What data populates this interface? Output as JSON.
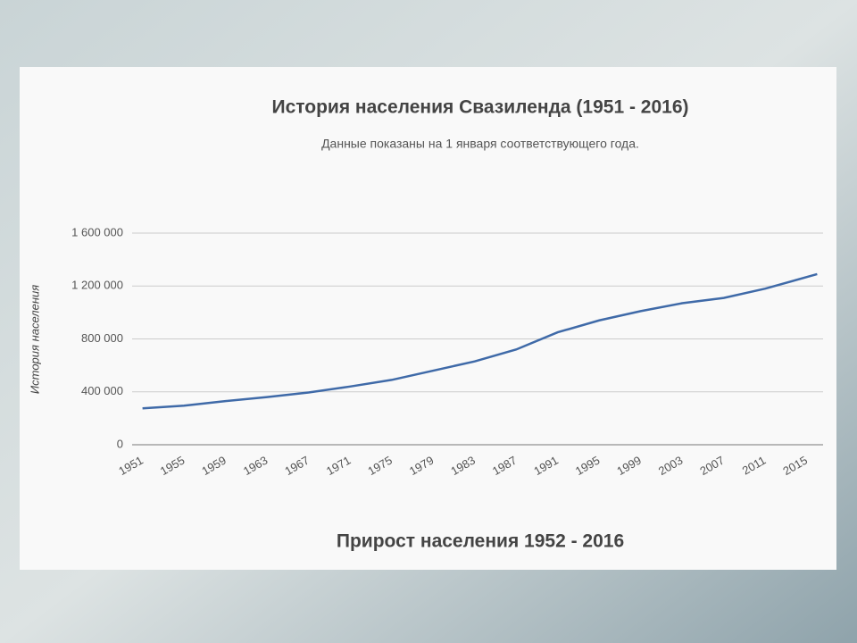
{
  "chart_data": {
    "type": "line",
    "title": "История населения Свазиленда (1951 - 2016)",
    "subtitle": "Данные показаны на 1 января соответствующего года.",
    "y_label": "История населения",
    "footer": "Прирост населения 1952 - 2016",
    "x": [
      1951,
      1955,
      1959,
      1963,
      1967,
      1971,
      1975,
      1979,
      1983,
      1987,
      1991,
      1995,
      1999,
      2003,
      2007,
      2011,
      2016
    ],
    "series": [
      {
        "color": "#3f6aa8",
        "values": [
          275000,
          295000,
          330000,
          360000,
          395000,
          440000,
          490000,
          560000,
          630000,
          720000,
          850000,
          940000,
          1010000,
          1070000,
          1110000,
          1180000,
          1290000
        ]
      }
    ],
    "xlim": [
      1950,
      2017
    ],
    "xticks": [
      1951,
      1955,
      1959,
      1963,
      1967,
      1971,
      1975,
      1979,
      1983,
      1987,
      1991,
      1995,
      1999,
      2003,
      2007,
      2011,
      2015
    ],
    "ylim": [
      0,
      1600000
    ],
    "yticks": [
      0,
      {
        "value": 400000,
        "label": "400 000"
      },
      {
        "value": 800000,
        "label": "800 000"
      },
      {
        "value": 1200000,
        "label": "1 200 000"
      },
      {
        "value": 1600000,
        "label": "1 600 000"
      }
    ],
    "grid": true
  }
}
